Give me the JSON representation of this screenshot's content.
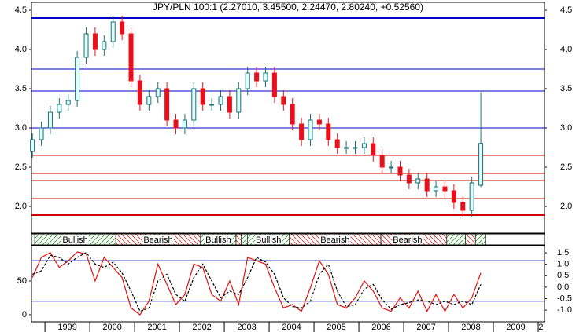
{
  "chart_data": {
    "type": "candlestick",
    "title": "JPY/PLN 100:1 (2.27010, 3.45500, 2.24470, 2.80240, +0.52560)",
    "xlim": [
      1998.7,
      2010.14
    ],
    "xticks": [
      1999,
      2000,
      2001,
      2002,
      2003,
      2004,
      2005,
      2006,
      2007,
      2008,
      2009,
      2010
    ],
    "xtick_labels": [
      {
        "value": 1999.5,
        "label": "1999"
      },
      {
        "value": 2000.5,
        "label": "2000"
      },
      {
        "value": 2001.5,
        "label": "2001"
      },
      {
        "value": 2002.5,
        "label": "2002"
      },
      {
        "value": 2003.5,
        "label": "2003"
      },
      {
        "value": 2004.5,
        "label": "2004"
      },
      {
        "value": 2005.5,
        "label": "2005"
      },
      {
        "value": 2006.5,
        "label": "2006"
      },
      {
        "value": 2007.5,
        "label": "2007"
      },
      {
        "value": 2008.5,
        "label": "2008"
      },
      {
        "value": 2009.5,
        "label": "2009"
      },
      {
        "value": 2010.06,
        "label": "2"
      }
    ],
    "ylim": [
      1.66,
      4.6
    ],
    "yticks": [
      {
        "value": 2,
        "label": "2.0"
      },
      2.5,
      {
        "value": 3,
        "label": "3.0"
      },
      3.5,
      {
        "value": 4,
        "label": "4.0"
      },
      4.5
    ],
    "up_color": "#dffcff",
    "up_edge": "#1a7070",
    "down_color": "#e8101a",
    "candles": {
      "x": [
        1998.72,
        1998.92,
        1999.12,
        1999.32,
        1999.52,
        1999.72,
        1999.92,
        2000.12,
        2000.32,
        2000.52,
        2000.72,
        2000.92,
        2001.12,
        2001.32,
        2001.52,
        2001.72,
        2001.92,
        2002.12,
        2002.32,
        2002.52,
        2002.72,
        2002.92,
        2003.12,
        2003.32,
        2003.52,
        2003.72,
        2003.92,
        2004.12,
        2004.32,
        2004.52,
        2004.72,
        2004.92,
        2005.12,
        2005.32,
        2005.52,
        2005.72,
        2005.92,
        2006.12,
        2006.32,
        2006.52,
        2006.72,
        2006.92,
        2007.12,
        2007.32,
        2007.52,
        2007.72,
        2007.92,
        2008.12,
        2008.32,
        2008.52,
        2008.72
      ],
      "open": [
        2.7,
        2.85,
        3.0,
        3.2,
        3.3,
        3.35,
        3.9,
        4.2,
        4.0,
        4.1,
        4.35,
        4.2,
        3.6,
        3.3,
        3.4,
        3.5,
        3.1,
        3.0,
        3.1,
        3.5,
        3.3,
        3.3,
        3.4,
        3.2,
        3.5,
        3.7,
        3.6,
        3.7,
        3.4,
        3.3,
        3.05,
        2.85,
        3.1,
        3.05,
        2.85,
        2.75,
        2.75,
        2.75,
        2.8,
        2.65,
        2.5,
        2.5,
        2.4,
        2.3,
        2.35,
        2.2,
        2.25,
        2.2,
        2.05,
        1.95,
        2.2701
      ],
      "high": [
        2.93,
        3.08,
        3.28,
        3.38,
        3.43,
        3.98,
        4.28,
        4.28,
        4.18,
        4.43,
        4.43,
        4.28,
        3.68,
        3.48,
        3.58,
        3.58,
        3.18,
        3.18,
        3.58,
        3.58,
        3.38,
        3.48,
        3.48,
        3.58,
        3.78,
        3.78,
        3.78,
        3.78,
        3.48,
        3.38,
        3.13,
        3.18,
        3.18,
        3.13,
        2.93,
        2.83,
        2.83,
        2.88,
        2.88,
        2.73,
        2.58,
        2.58,
        2.48,
        2.43,
        2.43,
        2.33,
        2.33,
        2.28,
        2.13,
        2.38,
        3.455
      ],
      "low": [
        2.62,
        2.77,
        2.92,
        3.12,
        3.22,
        3.27,
        3.82,
        3.92,
        3.92,
        4.02,
        4.12,
        3.52,
        3.22,
        3.22,
        3.32,
        3.02,
        2.92,
        2.92,
        3.02,
        3.22,
        3.22,
        3.22,
        3.12,
        3.12,
        3.42,
        3.52,
        3.52,
        3.32,
        3.22,
        2.97,
        2.77,
        2.77,
        2.97,
        2.77,
        2.67,
        2.67,
        2.67,
        2.67,
        2.57,
        2.42,
        2.42,
        2.32,
        2.22,
        2.22,
        2.12,
        2.12,
        2.12,
        1.97,
        1.87,
        1.87,
        2.2447
      ],
      "close": [
        2.85,
        3.0,
        3.2,
        3.3,
        3.35,
        3.9,
        4.2,
        4.0,
        4.1,
        4.35,
        4.2,
        3.6,
        3.3,
        3.4,
        3.5,
        3.1,
        3.0,
        3.1,
        3.5,
        3.3,
        3.3,
        3.4,
        3.2,
        3.5,
        3.7,
        3.6,
        3.7,
        3.4,
        3.3,
        3.05,
        2.85,
        3.1,
        3.05,
        2.85,
        2.75,
        2.75,
        2.75,
        2.8,
        2.65,
        2.5,
        2.5,
        2.4,
        2.3,
        2.35,
        2.2,
        2.25,
        2.2,
        2.05,
        1.95,
        2.3,
        2.8024
      ]
    },
    "levels": [
      {
        "value": 4.4,
        "color": "#0000c8",
        "width": 2
      },
      {
        "value": 3.75,
        "color": "#0000c8",
        "width": 1
      },
      {
        "value": 3.47,
        "color": "#0000c8",
        "width": 1
      },
      {
        "value": 3.0,
        "color": "#0000c8",
        "width": 1
      },
      {
        "value": 2.65,
        "color": "#d00000",
        "width": 1
      },
      {
        "value": 2.42,
        "color": "#d00000",
        "width": 1
      },
      {
        "value": 2.33,
        "color": "#d00000",
        "width": 1
      },
      {
        "value": 2.1,
        "color": "#d00000",
        "width": 1
      },
      {
        "value": 1.89,
        "color": "#d00000",
        "width": 2
      }
    ],
    "regimes": [
      {
        "start": 1998.77,
        "end": 2000.58,
        "label": "Bullish",
        "color": "#2a9a2a"
      },
      {
        "start": 2000.58,
        "end": 2002.47,
        "label": "Bearish",
        "color": "#d03030"
      },
      {
        "start": 2002.47,
        "end": 2003.26,
        "label": "Bullish",
        "color": "#2a9a2a"
      },
      {
        "start": 2003.26,
        "end": 2003.38,
        "color": "#d03030"
      },
      {
        "start": 2003.38,
        "end": 2003.52,
        "color": "#2a9a2a"
      },
      {
        "start": 2003.52,
        "end": 2004.45,
        "label": "Bullish",
        "color": "#2a9a2a"
      },
      {
        "start": 2004.45,
        "end": 2006.49,
        "label": "Bearish",
        "color": "#d03030"
      },
      {
        "start": 2006.49,
        "end": 2007.68,
        "label": "Bearish",
        "color": "#d03030"
      },
      {
        "start": 2007.68,
        "end": 2007.96,
        "color": "#d03030"
      },
      {
        "start": 2007.96,
        "end": 2008.38,
        "color": "#2a9a2a"
      },
      {
        "start": 2008.38,
        "end": 2008.6,
        "color": "#d03030"
      },
      {
        "start": 2008.6,
        "end": 2008.82,
        "color": "#2a9a2a"
      }
    ],
    "oscillator": {
      "ylim": [
        -10.5,
        102.3
      ],
      "yticks": [
        0,
        50
      ],
      "y2lim": [
        -1.51,
        1.81
      ],
      "y2ticks": [
        {
          "value": -1,
          "label": "-1.0"
        },
        -0.5,
        {
          "value": 0,
          "label": "0.0"
        },
        0.5,
        {
          "value": 1,
          "label": "1.0"
        },
        1.5
      ],
      "levels": [
        {
          "value": 80,
          "color": "#0000c8"
        },
        {
          "value": 20,
          "color": "#0000c8"
        }
      ],
      "series": [
        {
          "color": "#e01010",
          "dash": false,
          "values": [
            55,
            85,
            92,
            70,
            80,
            93,
            90,
            50,
            85,
            70,
            55,
            10,
            0,
            20,
            75,
            45,
            15,
            30,
            75,
            70,
            30,
            20,
            50,
            15,
            85,
            80,
            75,
            40,
            10,
            15,
            5,
            40,
            80,
            60,
            15,
            10,
            25,
            50,
            35,
            10,
            5,
            25,
            10,
            35,
            5,
            30,
            5,
            30,
            10,
            25,
            62
          ]
        },
        {
          "color": "#000000",
          "dash": true,
          "values": [
            60,
            65,
            88,
            85,
            75,
            85,
            92,
            75,
            70,
            78,
            62,
            35,
            5,
            10,
            50,
            60,
            30,
            20,
            55,
            75,
            50,
            25,
            35,
            30,
            55,
            85,
            78,
            60,
            25,
            12,
            10,
            20,
            60,
            75,
            35,
            12,
            15,
            38,
            45,
            22,
            8,
            15,
            18,
            22,
            20,
            15,
            20,
            15,
            20,
            15,
            45
          ]
        }
      ]
    }
  }
}
